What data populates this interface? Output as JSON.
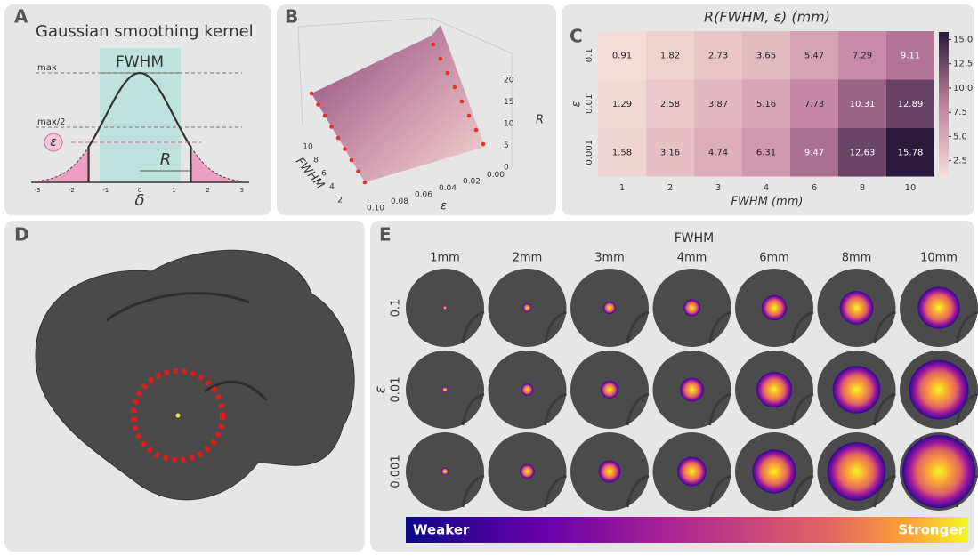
{
  "panels": {
    "a": {
      "letter": "A",
      "title": "Gaussian smoothing kernel",
      "fwhm": "FWHM",
      "max": "max",
      "half_max": "max/2",
      "epsilon": "ε",
      "r": "R",
      "delta": "δ",
      "xticks": [
        -3,
        -2,
        -1,
        0,
        1,
        2,
        3
      ]
    },
    "b": {
      "letter": "B",
      "x_label": "FWHM",
      "y_label": "ε",
      "z_label": "R",
      "fwhm_ticks": [
        2,
        4,
        6,
        8,
        10
      ],
      "eps_ticks": [
        "0.10",
        "0.08",
        "0.06",
        "0.04",
        "0.02",
        "0.00"
      ],
      "r_ticks": [
        0,
        5,
        10,
        15,
        20
      ]
    },
    "c": {
      "letter": "C",
      "title": "R(FWHM, ε) (mm)",
      "x_label": "FWHM (mm)",
      "y_label": "ε",
      "columns": [
        1,
        2,
        3,
        4,
        6,
        8,
        10
      ],
      "rows": [
        "0.1",
        "0.01",
        "0.001"
      ],
      "values": [
        [
          0.91,
          1.82,
          2.73,
          3.65,
          5.47,
          7.29,
          9.11
        ],
        [
          1.29,
          2.58,
          3.87,
          5.16,
          7.73,
          10.31,
          12.89
        ],
        [
          1.58,
          3.16,
          4.74,
          6.31,
          9.47,
          12.63,
          15.78
        ]
      ],
      "colorbar_ticks": [
        {
          "value": 2.5,
          "label": "2.5"
        },
        {
          "value": 5,
          "label": "5.0"
        },
        {
          "value": 7.5,
          "label": "7.5"
        },
        {
          "value": 10,
          "label": "10.0"
        },
        {
          "value": 12.5,
          "label": "12.5"
        },
        {
          "value": 15,
          "label": "15.0"
        }
      ]
    },
    "d": {
      "letter": "D"
    },
    "e": {
      "letter": "E",
      "fwhm_title": "FWHM",
      "columns": [
        "1mm",
        "2mm",
        "3mm",
        "4mm",
        "6mm",
        "8mm",
        "10mm"
      ],
      "epsilon": "ε",
      "rows": [
        "0.1",
        "0.01",
        "0.001"
      ],
      "weaker": "Weaker",
      "stronger": "Stronger"
    }
  }
}
